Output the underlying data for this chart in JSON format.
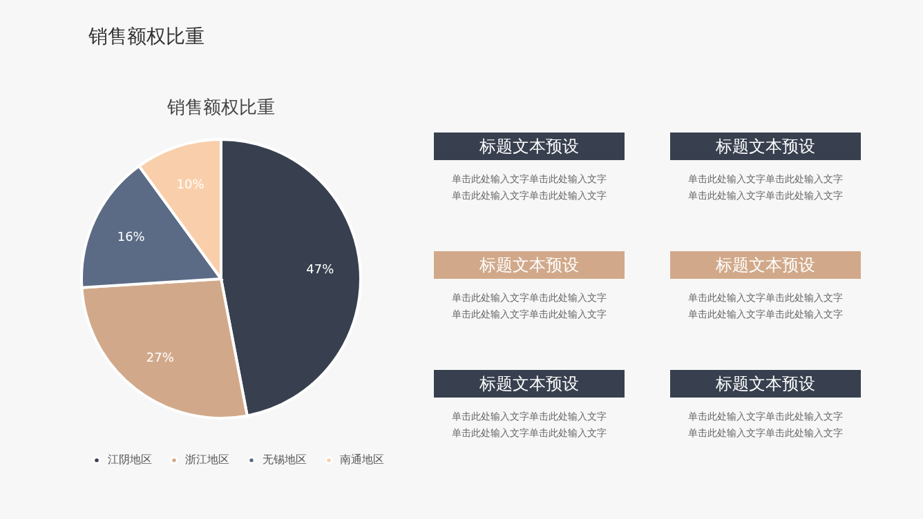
{
  "chart_data": [
    {
      "type": "pie",
      "title": "销售额权比重",
      "categories": [
        "江阴地区",
        "浙江地区",
        "无锡地区",
        "南通地区"
      ],
      "values": [
        47,
        27,
        16,
        10
      ],
      "colors": [
        "#38404f",
        "#d1a98a",
        "#5b6b85",
        "#f9cfab"
      ],
      "value_labels": [
        "47%",
        "27%",
        "16%",
        "10%"
      ],
      "legend": "bottom"
    },
    {
      "type": "other",
      "title": "销售额权比重",
      "colors": [
        "#38404f",
        "#38404f",
        "#d1a98a",
        "#d1a98a",
        "#38404f",
        "#38404f"
      ],
      "annotations": [
        "标题文本预设",
        "单击此处输入文字单击此处输入文字",
        "单击此处输入文字单击此处输入文字",
        "标题文本预设",
        "单击此处输入文字单击此处输入文字",
        "单击此处输入文字单击此处输入文字",
        "标题文本预设",
        "单击此处输入文字单击此处输入文字",
        "单击此处输入文字单击此处输入文字",
        "标题文本预设",
        "单击此处输入文字单击此处输入文字",
        "单击此处输入文字单击此处输入文字",
        "标题文本预设",
        "单击此处输入文字单击此处输入文字",
        "单击此处输入文字单击此处输入文字",
        "标题文本预设",
        "单击此处输入文字单击此处输入文字",
        "单击此处输入文字单击此处输入文字"
      ]
    }
  ]
}
